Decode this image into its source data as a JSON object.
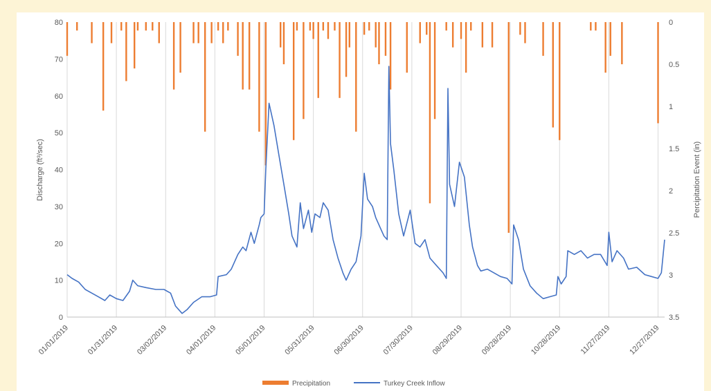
{
  "chart_data": {
    "type": "bar+line",
    "title": "",
    "xlabel": "",
    "ylabel_left": "Discharge (ft³/sec)",
    "ylabel_right": "Percipitation Event (in)",
    "ylim_left": [
      0,
      80
    ],
    "ylim_right_inverted": [
      0,
      3.5
    ],
    "yticks_left": [
      "0",
      "10",
      "20",
      "30",
      "40",
      "50",
      "60",
      "70",
      "80"
    ],
    "yticks_right": [
      "0",
      "0.5",
      "1",
      "1.5",
      "2",
      "2.5",
      "3",
      "3.5"
    ],
    "x_tick_labels": [
      "01/01/2019",
      "01/31/2019",
      "03/02/2019",
      "04/01/2019",
      "05/01/2019",
      "05/31/2019",
      "06/30/2019",
      "07/30/2019",
      "08/29/2019",
      "09/28/2019",
      "10/28/2019",
      "11/27/2019",
      "12/27/2019"
    ],
    "x_start": "2019-01-01",
    "x_end": "2019-12-31",
    "grid": "vertical",
    "legend_position": "bottom-center",
    "series": [
      {
        "name": "Precipitation",
        "type": "bar",
        "axis": "right",
        "color": "#ed7d31",
        "points": [
          [
            "2019-01-01",
            0.4
          ],
          [
            "2019-01-07",
            0.1
          ],
          [
            "2019-01-16",
            0.25
          ],
          [
            "2019-01-23",
            1.05
          ],
          [
            "2019-01-28",
            0.25
          ],
          [
            "2019-02-03",
            0.1
          ],
          [
            "2019-02-06",
            0.7
          ],
          [
            "2019-02-11",
            0.55
          ],
          [
            "2019-02-13",
            0.1
          ],
          [
            "2019-02-18",
            0.1
          ],
          [
            "2019-02-22",
            0.1
          ],
          [
            "2019-02-26",
            0.25
          ],
          [
            "2019-03-07",
            0.8
          ],
          [
            "2019-03-11",
            0.6
          ],
          [
            "2019-03-19",
            0.25
          ],
          [
            "2019-03-22",
            0.25
          ],
          [
            "2019-03-26",
            1.3
          ],
          [
            "2019-03-30",
            0.25
          ],
          [
            "2019-04-03",
            0.1
          ],
          [
            "2019-04-06",
            0.25
          ],
          [
            "2019-04-09",
            0.1
          ],
          [
            "2019-04-15",
            0.4
          ],
          [
            "2019-04-18",
            0.8
          ],
          [
            "2019-04-22",
            0.8
          ],
          [
            "2019-04-28",
            1.3
          ],
          [
            "2019-05-02",
            1.7
          ],
          [
            "2019-05-11",
            0.3
          ],
          [
            "2019-05-13",
            0.5
          ],
          [
            "2019-05-19",
            1.4
          ],
          [
            "2019-05-21",
            0.1
          ],
          [
            "2019-05-25",
            1.15
          ],
          [
            "2019-05-29",
            0.1
          ],
          [
            "2019-05-31",
            0.2
          ],
          [
            "2019-06-03",
            0.9
          ],
          [
            "2019-06-06",
            0.1
          ],
          [
            "2019-06-09",
            0.2
          ],
          [
            "2019-06-13",
            0.1
          ],
          [
            "2019-06-16",
            0.9
          ],
          [
            "2019-06-20",
            0.65
          ],
          [
            "2019-06-22",
            0.3
          ],
          [
            "2019-06-26",
            1.3
          ],
          [
            "2019-07-01",
            0.15
          ],
          [
            "2019-07-04",
            0.1
          ],
          [
            "2019-07-08",
            0.3
          ],
          [
            "2019-07-10",
            0.5
          ],
          [
            "2019-07-14",
            0.4
          ],
          [
            "2019-07-17",
            0.8
          ],
          [
            "2019-07-27",
            0.6
          ],
          [
            "2019-08-04",
            0.25
          ],
          [
            "2019-08-08",
            0.15
          ],
          [
            "2019-08-10",
            2.15
          ],
          [
            "2019-08-13",
            1.15
          ],
          [
            "2019-08-20",
            0.1
          ],
          [
            "2019-08-24",
            0.3
          ],
          [
            "2019-08-29",
            0.2
          ],
          [
            "2019-09-01",
            0.6
          ],
          [
            "2019-09-04",
            0.1
          ],
          [
            "2019-09-11",
            0.3
          ],
          [
            "2019-09-17",
            0.3
          ],
          [
            "2019-09-27",
            2.5
          ],
          [
            "2019-10-04",
            0.15
          ],
          [
            "2019-10-07",
            0.25
          ],
          [
            "2019-10-18",
            0.4
          ],
          [
            "2019-10-24",
            1.25
          ],
          [
            "2019-10-28",
            1.4
          ],
          [
            "2019-11-16",
            0.1
          ],
          [
            "2019-11-19",
            0.1
          ],
          [
            "2019-11-25",
            0.6
          ],
          [
            "2019-11-28",
            0.4
          ],
          [
            "2019-12-05",
            0.5
          ],
          [
            "2019-12-27",
            1.2
          ]
        ]
      },
      {
        "name": "Turkey Creek Inflow",
        "type": "line",
        "axis": "left",
        "color": "#4472c4",
        "points": [
          [
            "2019-01-01",
            11.5
          ],
          [
            "2019-01-04",
            10.5
          ],
          [
            "2019-01-08",
            9.5
          ],
          [
            "2019-01-12",
            7.5
          ],
          [
            "2019-01-16",
            6.5
          ],
          [
            "2019-01-20",
            5.5
          ],
          [
            "2019-01-24",
            4.5
          ],
          [
            "2019-01-27",
            6
          ],
          [
            "2019-01-31",
            5
          ],
          [
            "2019-02-04",
            4.5
          ],
          [
            "2019-02-08",
            7
          ],
          [
            "2019-02-10",
            10
          ],
          [
            "2019-02-13",
            8.5
          ],
          [
            "2019-02-18",
            8
          ],
          [
            "2019-02-24",
            7.5
          ],
          [
            "2019-03-01",
            7.5
          ],
          [
            "2019-03-05",
            6.5
          ],
          [
            "2019-03-08",
            3
          ],
          [
            "2019-03-12",
            1
          ],
          [
            "2019-03-15",
            2
          ],
          [
            "2019-03-19",
            4
          ],
          [
            "2019-03-24",
            5.5
          ],
          [
            "2019-03-29",
            5.5
          ],
          [
            "2019-04-02",
            6
          ],
          [
            "2019-04-03",
            11
          ],
          [
            "2019-04-08",
            11.5
          ],
          [
            "2019-04-11",
            13
          ],
          [
            "2019-04-15",
            17
          ],
          [
            "2019-04-18",
            19
          ],
          [
            "2019-04-20",
            18
          ],
          [
            "2019-04-23",
            23
          ],
          [
            "2019-04-25",
            20
          ],
          [
            "2019-04-28",
            25
          ],
          [
            "2019-04-29",
            27
          ],
          [
            "2019-05-01",
            28
          ],
          [
            "2019-05-02",
            40
          ],
          [
            "2019-05-04",
            58
          ],
          [
            "2019-05-07",
            52
          ],
          [
            "2019-05-10",
            44
          ],
          [
            "2019-05-13",
            36
          ],
          [
            "2019-05-16",
            28
          ],
          [
            "2019-05-18",
            22
          ],
          [
            "2019-05-21",
            19
          ],
          [
            "2019-05-23",
            31
          ],
          [
            "2019-05-25",
            24
          ],
          [
            "2019-05-28",
            29
          ],
          [
            "2019-05-30",
            23
          ],
          [
            "2019-06-01",
            28
          ],
          [
            "2019-06-04",
            27
          ],
          [
            "2019-06-06",
            31
          ],
          [
            "2019-06-09",
            29
          ],
          [
            "2019-06-12",
            21
          ],
          [
            "2019-06-15",
            16
          ],
          [
            "2019-06-18",
            12
          ],
          [
            "2019-06-20",
            10
          ],
          [
            "2019-06-23",
            13
          ],
          [
            "2019-06-26",
            15
          ],
          [
            "2019-06-29",
            22
          ],
          [
            "2019-07-01",
            39
          ],
          [
            "2019-07-03",
            32
          ],
          [
            "2019-07-06",
            30
          ],
          [
            "2019-07-08",
            27
          ],
          [
            "2019-07-11",
            24
          ],
          [
            "2019-07-13",
            22
          ],
          [
            "2019-07-15",
            21
          ],
          [
            "2019-07-16",
            68
          ],
          [
            "2019-07-17",
            47
          ],
          [
            "2019-07-19",
            40
          ],
          [
            "2019-07-22",
            28
          ],
          [
            "2019-07-25",
            22
          ],
          [
            "2019-07-29",
            29
          ],
          [
            "2019-08-01",
            20
          ],
          [
            "2019-08-04",
            19
          ],
          [
            "2019-08-07",
            21
          ],
          [
            "2019-08-10",
            16
          ],
          [
            "2019-08-14",
            14
          ],
          [
            "2019-08-18",
            12
          ],
          [
            "2019-08-20",
            10.5
          ],
          [
            "2019-08-21",
            62
          ],
          [
            "2019-08-22",
            36
          ],
          [
            "2019-08-25",
            30
          ],
          [
            "2019-08-28",
            42
          ],
          [
            "2019-08-31",
            38
          ],
          [
            "2019-09-03",
            25
          ],
          [
            "2019-09-05",
            19
          ],
          [
            "2019-09-08",
            14
          ],
          [
            "2019-09-10",
            12.5
          ],
          [
            "2019-09-14",
            13
          ],
          [
            "2019-09-18",
            12
          ],
          [
            "2019-09-22",
            11
          ],
          [
            "2019-09-26",
            10.5
          ],
          [
            "2019-09-29",
            9
          ],
          [
            "2019-09-30",
            25
          ],
          [
            "2019-10-03",
            21
          ],
          [
            "2019-10-06",
            13
          ],
          [
            "2019-10-10",
            8.5
          ],
          [
            "2019-10-14",
            6.5
          ],
          [
            "2019-10-18",
            5
          ],
          [
            "2019-10-22",
            5.5
          ],
          [
            "2019-10-26",
            6
          ],
          [
            "2019-10-27",
            11
          ],
          [
            "2019-10-29",
            9
          ],
          [
            "2019-11-01",
            11
          ],
          [
            "2019-11-02",
            18
          ],
          [
            "2019-11-06",
            17
          ],
          [
            "2019-11-10",
            18
          ],
          [
            "2019-11-14",
            16
          ],
          [
            "2019-11-18",
            17
          ],
          [
            "2019-11-22",
            17
          ],
          [
            "2019-11-26",
            14
          ],
          [
            "2019-11-27",
            23
          ],
          [
            "2019-11-29",
            15
          ],
          [
            "2019-12-02",
            18
          ],
          [
            "2019-12-06",
            16
          ],
          [
            "2019-12-09",
            13
          ],
          [
            "2019-12-14",
            13.5
          ],
          [
            "2019-12-19",
            11.5
          ],
          [
            "2019-12-23",
            11
          ],
          [
            "2019-12-27",
            10.5
          ],
          [
            "2019-12-29",
            12
          ],
          [
            "2019-12-31",
            21
          ]
        ]
      }
    ]
  }
}
